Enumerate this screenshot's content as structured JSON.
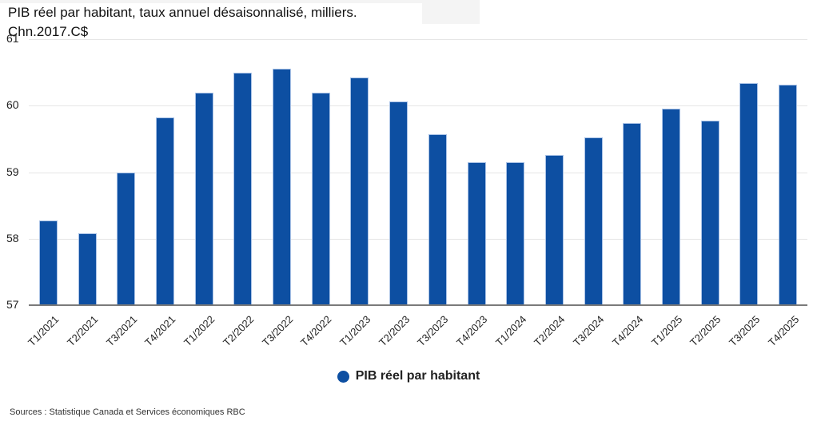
{
  "title": "PIB réel par habitant, taux annuel désaisonnalisé, milliers. Chn.2017.C$",
  "legend": {
    "label": "PIB réel par habitant",
    "color": "#0d4fa2"
  },
  "source": "Sources : Statistique Canada et Services économiques RBC",
  "y_axis": {
    "ticks": [
      "61",
      "60",
      "59",
      "58",
      "57"
    ]
  },
  "chart_data": {
    "type": "bar",
    "title": "PIB réel par habitant, taux annuel désaisonnalisé, milliers. Chn.2017.C$",
    "xlabel": "",
    "ylabel": "",
    "ylim": [
      57,
      61
    ],
    "yticks": [
      57,
      58,
      59,
      60,
      61
    ],
    "grid": true,
    "legend_position": "bottom",
    "categories": [
      "T1/2021",
      "T2/2021",
      "T3/2021",
      "T4/2021",
      "T1/2022",
      "T2/2022",
      "T3/2022",
      "T4/2022",
      "T1/2023",
      "T2/2023",
      "T3/2023",
      "T4/2023",
      "T1/2024",
      "T2/2024",
      "T3/2024",
      "T4/2024",
      "T1/2025",
      "T2/2025",
      "T3/2025",
      "T4/2025"
    ],
    "series": [
      {
        "name": "PIB réel par habitant",
        "color": "#0d4fa2",
        "values": [
          58.27,
          58.08,
          59.0,
          59.82,
          60.19,
          60.49,
          60.56,
          60.19,
          60.42,
          60.06,
          59.57,
          59.15,
          59.15,
          59.26,
          59.52,
          59.74,
          59.95,
          59.78,
          60.34,
          60.31
        ]
      }
    ],
    "annotations": [
      "Sources : Statistique Canada et Services économiques RBC"
    ]
  }
}
